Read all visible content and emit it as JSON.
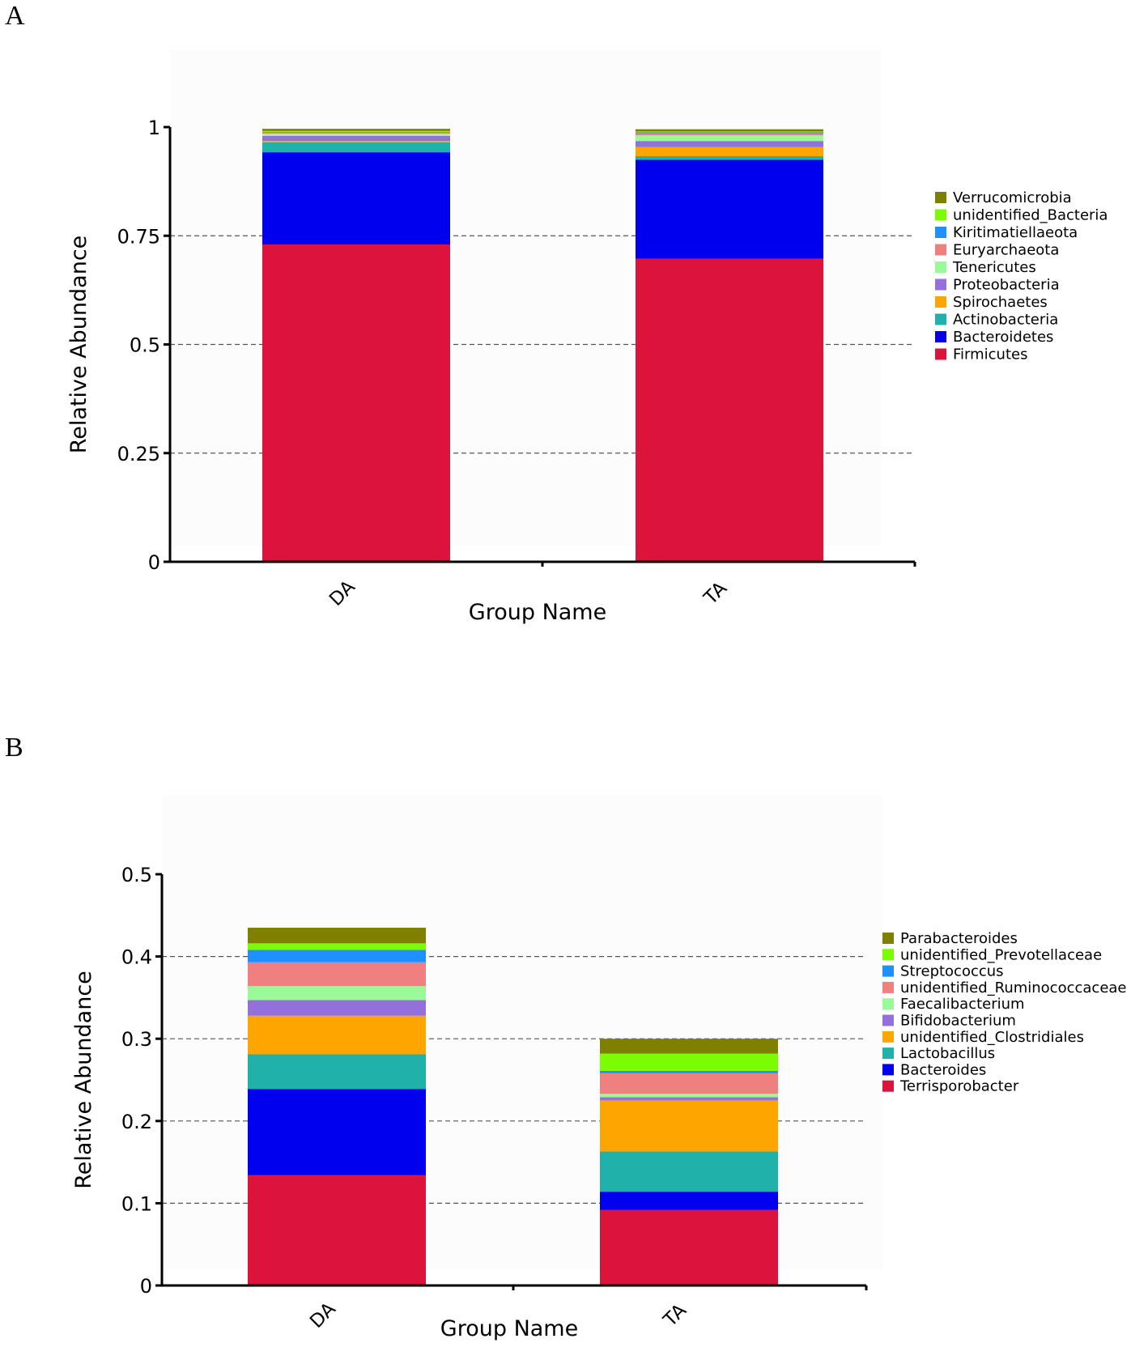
{
  "panels": [
    {
      "letter": "A"
    },
    {
      "letter": "B"
    }
  ],
  "chart_data": [
    {
      "type": "bar",
      "stacked": true,
      "panel": "A",
      "xlabel": "Group Name",
      "ylabel": "Relative Abundance",
      "ylim": [
        0,
        1
      ],
      "yticks": [
        0,
        0.25,
        0.5,
        0.75,
        1
      ],
      "ytick_labels": [
        "0",
        "0.25",
        "0.5",
        "0.75",
        "1"
      ],
      "gridlines": [
        0.25,
        0.5,
        0.75
      ],
      "legend_position": "right",
      "categories": [
        "DA",
        "TA"
      ],
      "series": [
        {
          "name": "Firmicutes",
          "color": "#dc143c",
          "values": [
            0.73,
            0.697
          ]
        },
        {
          "name": "Bacteroidetes",
          "color": "#0000ee",
          "values": [
            0.212,
            0.228
          ]
        },
        {
          "name": "Actinobacteria",
          "color": "#20b2aa",
          "values": [
            0.023,
            0.008
          ]
        },
        {
          "name": "Spirochaetes",
          "color": "#ffa500",
          "values": [
            0.003,
            0.021
          ]
        },
        {
          "name": "Proteobacteria",
          "color": "#9370db",
          "values": [
            0.012,
            0.014
          ]
        },
        {
          "name": "Tenericutes",
          "color": "#98fb98",
          "values": [
            0.005,
            0.013
          ]
        },
        {
          "name": "Euryarchaeota",
          "color": "#f08080",
          "values": [
            0.003,
            0.005
          ]
        },
        {
          "name": "Kiritimatiellaeota",
          "color": "#1e90ff",
          "values": [
            0.001,
            0.002
          ]
        },
        {
          "name": "unidentified_Bacteria",
          "color": "#7cfc00",
          "values": [
            0.002,
            0.002
          ]
        },
        {
          "name": "Verrucomicrobia",
          "color": "#808000",
          "values": [
            0.005,
            0.005
          ]
        }
      ]
    },
    {
      "type": "bar",
      "stacked": true,
      "panel": "B",
      "xlabel": "Group Name",
      "ylabel": "Relative Abundance",
      "ylim": [
        0,
        0.5
      ],
      "yticks": [
        0,
        0.1,
        0.2,
        0.3,
        0.4,
        0.5
      ],
      "ytick_labels": [
        "0",
        "0.1",
        "0.2",
        "0.3",
        "0.4",
        "0.5"
      ],
      "gridlines": [
        0.1,
        0.2,
        0.3,
        0.4
      ],
      "legend_position": "right",
      "categories": [
        "DA",
        "TA"
      ],
      "series": [
        {
          "name": "Terrisporobacter",
          "color": "#dc143c",
          "values": [
            0.134,
            0.092
          ]
        },
        {
          "name": "Bacteroides",
          "color": "#0000ee",
          "values": [
            0.105,
            0.022
          ]
        },
        {
          "name": "Lactobacillus",
          "color": "#20b2aa",
          "values": [
            0.042,
            0.049
          ]
        },
        {
          "name": "unidentified_Clostridiales",
          "color": "#ffa500",
          "values": [
            0.047,
            0.062
          ]
        },
        {
          "name": "Bifidobacterium",
          "color": "#9370db",
          "values": [
            0.019,
            0.004
          ]
        },
        {
          "name": "Faecalibacterium",
          "color": "#98fb98",
          "values": [
            0.017,
            0.004
          ]
        },
        {
          "name": "unidentified_Ruminococcaceae",
          "color": "#f08080",
          "values": [
            0.029,
            0.025
          ]
        },
        {
          "name": "Streptococcus",
          "color": "#1e90ff",
          "values": [
            0.015,
            0.003
          ]
        },
        {
          "name": "unidentified_Prevotellaceae",
          "color": "#7cfc00",
          "values": [
            0.008,
            0.021
          ]
        },
        {
          "name": "Parabacteroides",
          "color": "#808000",
          "values": [
            0.019,
            0.018
          ]
        }
      ]
    }
  ]
}
